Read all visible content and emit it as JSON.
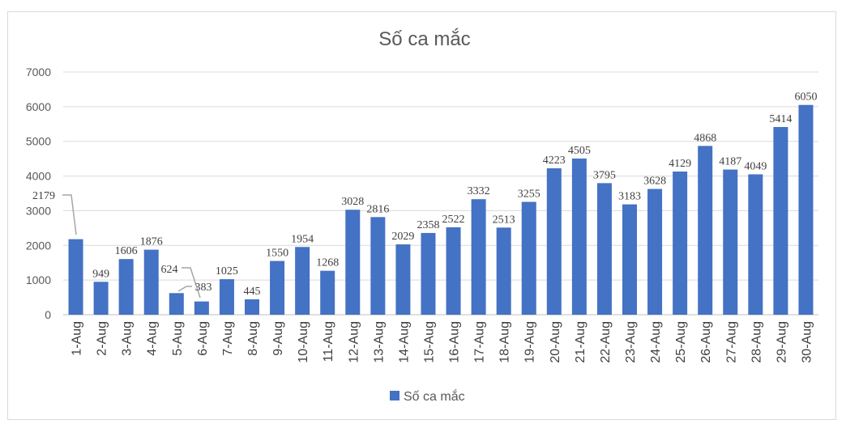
{
  "chart_data": {
    "type": "bar",
    "title": "Số ca mắc",
    "categories": [
      "1-Aug",
      "2-Aug",
      "3-Aug",
      "4-Aug",
      "5-Aug",
      "6-Aug",
      "7-Aug",
      "8-Aug",
      "9-Aug",
      "10-Aug",
      "11-Aug",
      "12-Aug",
      "13-Aug",
      "14-Aug",
      "15-Aug",
      "16-Aug",
      "17-Aug",
      "18-Aug",
      "19-Aug",
      "20-Aug",
      "21-Aug",
      "22-Aug",
      "23-Aug",
      "24-Aug",
      "25-Aug",
      "26-Aug",
      "27-Aug",
      "28-Aug",
      "29-Aug",
      "30-Aug"
    ],
    "series": [
      {
        "name": "Số ca mắc",
        "color": "#4472c4",
        "values": [
          2179,
          949,
          1606,
          1876,
          624,
          383,
          1025,
          445,
          1550,
          1954,
          1268,
          3028,
          2816,
          2029,
          2358,
          2522,
          3332,
          2513,
          3255,
          4223,
          4505,
          3795,
          3183,
          3628,
          4129,
          4868,
          4187,
          4049,
          5414,
          6050
        ]
      }
    ],
    "yticks": [
      0,
      1000,
      2000,
      3000,
      4000,
      5000,
      6000,
      7000
    ],
    "ylim": [
      0,
      7000
    ],
    "grid": true,
    "legend": "bottom",
    "xlabel": "",
    "ylabel": ""
  }
}
